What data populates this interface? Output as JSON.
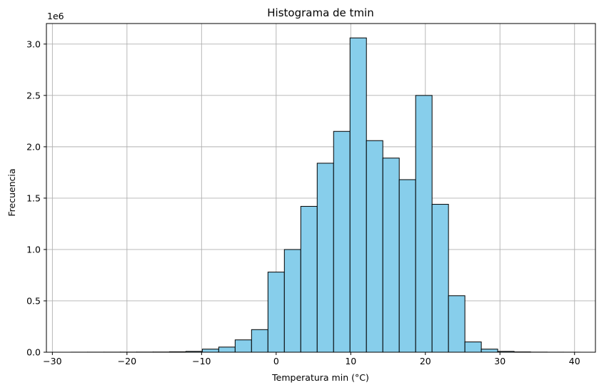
{
  "chart_data": {
    "type": "bar",
    "subtype": "histogram",
    "title": "Histograma de tmin",
    "xlabel": "Temperatura min (°C)",
    "ylabel": "Frecuencia",
    "y_scale_label": "1e6",
    "xlim": [
      -30.8,
      42.8
    ],
    "ylim": [
      0,
      3.2
    ],
    "x_ticks": [
      -30,
      -20,
      -10,
      0,
      10,
      20,
      30,
      40
    ],
    "x_tick_labels": [
      "−30",
      "−20",
      "−10",
      "0",
      "10",
      "20",
      "30",
      "40"
    ],
    "y_ticks": [
      0,
      0.5,
      1.0,
      1.5,
      2.0,
      2.5,
      3.0
    ],
    "y_tick_labels": [
      "0.0",
      "0.5",
      "1.0",
      "1.5",
      "2.0",
      "2.5",
      "3.0"
    ],
    "grid": true,
    "bar_color": "#87ceeb",
    "edge_color": "#000000",
    "bins": [
      {
        "x0": -27.5,
        "x1": -25.3,
        "value": 0.0004
      },
      {
        "x0": -25.3,
        "x1": -23.1,
        "value": 0.0006
      },
      {
        "x0": -23.1,
        "x1": -20.9,
        "value": 0.0008
      },
      {
        "x0": -20.9,
        "x1": -18.7,
        "value": 0.001
      },
      {
        "x0": -18.7,
        "x1": -16.5,
        "value": 0.0015
      },
      {
        "x0": -16.5,
        "x1": -14.3,
        "value": 0.002
      },
      {
        "x0": -14.3,
        "x1": -12.1,
        "value": 0.004
      },
      {
        "x0": -12.1,
        "x1": -9.9,
        "value": 0.008
      },
      {
        "x0": -9.9,
        "x1": -7.7,
        "value": 0.03
      },
      {
        "x0": -7.7,
        "x1": -5.5,
        "value": 0.05
      },
      {
        "x0": -5.5,
        "x1": -3.3,
        "value": 0.12
      },
      {
        "x0": -3.3,
        "x1": -1.1,
        "value": 0.22
      },
      {
        "x0": -1.1,
        "x1": 1.1,
        "value": 0.78
      },
      {
        "x0": 1.1,
        "x1": 3.3,
        "value": 1.0
      },
      {
        "x0": 3.3,
        "x1": 5.5,
        "value": 1.42
      },
      {
        "x0": 5.5,
        "x1": 7.7,
        "value": 1.84
      },
      {
        "x0": 7.7,
        "x1": 9.9,
        "value": 2.15
      },
      {
        "x0": 9.9,
        "x1": 12.1,
        "value": 3.06
      },
      {
        "x0": 12.1,
        "x1": 14.3,
        "value": 2.06
      },
      {
        "x0": 14.3,
        "x1": 16.5,
        "value": 1.89
      },
      {
        "x0": 16.5,
        "x1": 18.7,
        "value": 1.68
      },
      {
        "x0": 18.7,
        "x1": 20.9,
        "value": 2.5
      },
      {
        "x0": 20.9,
        "x1": 23.1,
        "value": 1.44
      },
      {
        "x0": 23.1,
        "x1": 25.3,
        "value": 0.55
      },
      {
        "x0": 25.3,
        "x1": 27.5,
        "value": 0.1
      },
      {
        "x0": 27.5,
        "x1": 29.7,
        "value": 0.03
      },
      {
        "x0": 29.7,
        "x1": 31.9,
        "value": 0.008
      },
      {
        "x0": 31.9,
        "x1": 34.1,
        "value": 0.003
      },
      {
        "x0": 34.1,
        "x1": 36.3,
        "value": 0.001
      },
      {
        "x0": 36.3,
        "x1": 38.5,
        "value": 0.0005
      },
      {
        "x0": 38.5,
        "x1": 40.7,
        "value": 0.0003
      }
    ]
  }
}
